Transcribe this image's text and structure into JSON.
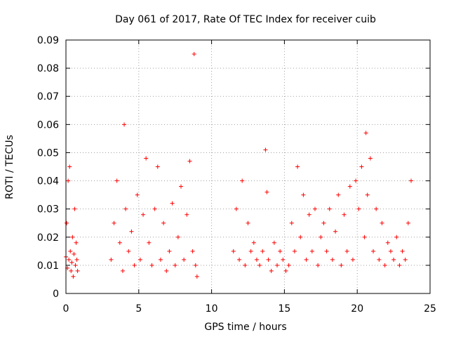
{
  "chart_data": {
    "type": "scatter",
    "title": "Day 061 of 2017, Rate Of TEC Index for receiver cuib",
    "xlabel": "GPS time / hours",
    "ylabel": "ROTI / TECUs",
    "xlim": [
      0,
      25
    ],
    "ylim": [
      0,
      0.09
    ],
    "xticks": [
      "0",
      "5",
      "10",
      "15",
      "20",
      "25"
    ],
    "yticks": [
      "0",
      "0.01",
      "0.02",
      "0.03",
      "0.04",
      "0.05",
      "0.06",
      "0.07",
      "0.08",
      "0.09"
    ],
    "grid": true,
    "marker": "+",
    "color": "#ff0000",
    "series": [
      {
        "x": [
          0.0,
          0.05,
          0.1,
          0.15,
          0.2,
          0.25,
          0.3,
          0.35,
          0.4,
          0.45,
          0.5,
          0.55,
          0.6,
          0.65,
          0.7,
          0.75,
          0.8,
          3.1,
          3.3,
          3.5,
          3.7,
          3.9,
          4.0,
          4.1,
          4.3,
          4.5,
          4.7,
          4.9,
          5.1,
          5.3,
          5.5,
          5.7,
          5.9,
          6.1,
          6.3,
          6.5,
          6.7,
          6.9,
          7.1,
          7.3,
          7.5,
          7.7,
          7.9,
          8.1,
          8.3,
          8.5,
          8.7,
          8.8,
          8.9,
          9.0,
          11.5,
          11.7,
          11.9,
          12.1,
          12.3,
          12.5,
          12.7,
          12.9,
          13.1,
          13.3,
          13.5,
          13.7,
          13.8,
          13.9,
          14.1,
          14.3,
          14.5,
          14.7,
          14.9,
          15.1,
          15.3,
          15.5,
          15.7,
          15.9,
          16.1,
          16.3,
          16.5,
          16.7,
          16.9,
          17.1,
          17.3,
          17.5,
          17.7,
          17.9,
          18.1,
          18.3,
          18.5,
          18.7,
          18.9,
          19.1,
          19.3,
          19.5,
          19.7,
          19.9,
          20.1,
          20.3,
          20.5,
          20.6,
          20.7,
          20.9,
          21.1,
          21.3,
          21.5,
          21.7,
          21.9,
          22.1,
          22.3,
          22.5,
          22.7,
          22.9,
          23.1,
          23.3,
          23.5,
          23.7
        ],
        "y": [
          0.013,
          0.025,
          0.009,
          0.04,
          0.012,
          0.045,
          0.015,
          0.008,
          0.011,
          0.02,
          0.006,
          0.014,
          0.03,
          0.01,
          0.018,
          0.012,
          0.008,
          0.012,
          0.025,
          0.04,
          0.018,
          0.008,
          0.06,
          0.03,
          0.015,
          0.022,
          0.01,
          0.035,
          0.012,
          0.028,
          0.048,
          0.018,
          0.01,
          0.03,
          0.045,
          0.012,
          0.025,
          0.008,
          0.015,
          0.032,
          0.01,
          0.02,
          0.038,
          0.012,
          0.028,
          0.047,
          0.015,
          0.085,
          0.01,
          0.006,
          0.015,
          0.03,
          0.012,
          0.04,
          0.01,
          0.025,
          0.015,
          0.018,
          0.012,
          0.01,
          0.015,
          0.051,
          0.036,
          0.012,
          0.008,
          0.018,
          0.01,
          0.015,
          0.012,
          0.008,
          0.01,
          0.025,
          0.015,
          0.045,
          0.02,
          0.035,
          0.012,
          0.028,
          0.015,
          0.03,
          0.01,
          0.02,
          0.025,
          0.015,
          0.03,
          0.012,
          0.022,
          0.035,
          0.01,
          0.028,
          0.015,
          0.038,
          0.012,
          0.04,
          0.03,
          0.045,
          0.02,
          0.057,
          0.035,
          0.048,
          0.015,
          0.03,
          0.012,
          0.025,
          0.01,
          0.018,
          0.015,
          0.012,
          0.02,
          0.01,
          0.015,
          0.012,
          0.025,
          0.04
        ]
      }
    ]
  }
}
